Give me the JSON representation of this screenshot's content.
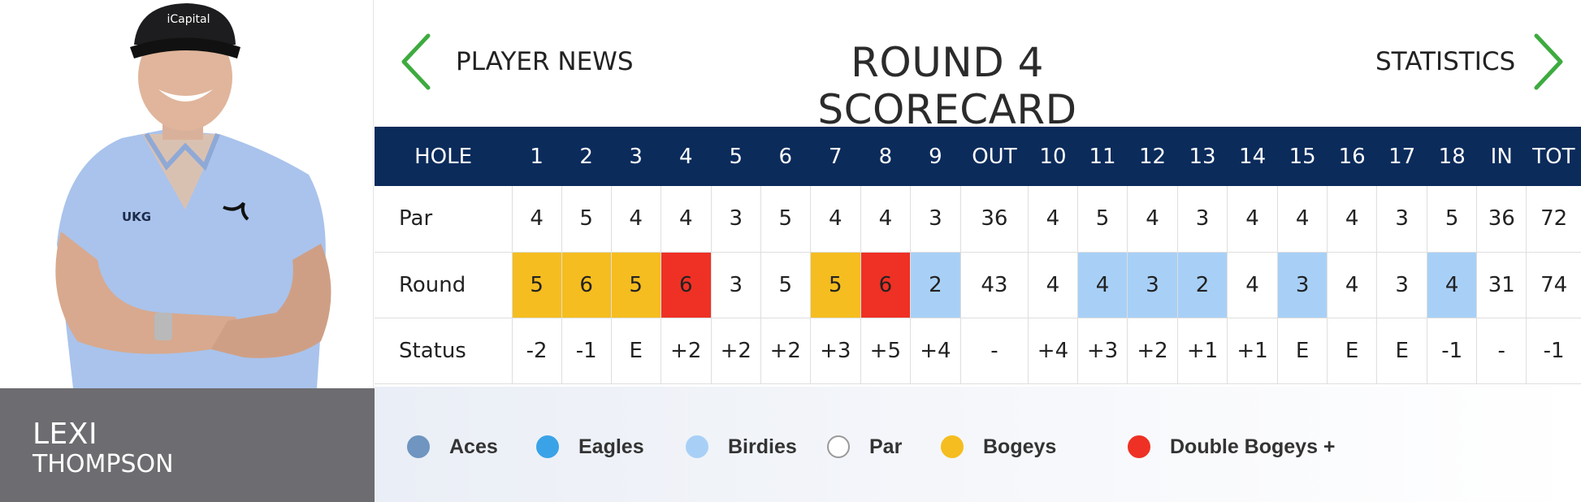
{
  "player": {
    "first_name": "LEXI",
    "last_name": "THOMPSON",
    "cap_text": "iCapital",
    "shirt_text": "UKG"
  },
  "header": {
    "title": "ROUND 4 SCORECARD",
    "prev_label": "PLAYER NEWS",
    "next_label": "STATISTICS"
  },
  "scorecard": {
    "columns": [
      "HOLE",
      "1",
      "2",
      "3",
      "4",
      "5",
      "6",
      "7",
      "8",
      "9",
      "OUT",
      "10",
      "11",
      "12",
      "13",
      "14",
      "15",
      "16",
      "17",
      "18",
      "IN",
      "TOT"
    ],
    "rows": [
      {
        "label": "Par",
        "cells": [
          "4",
          "5",
          "4",
          "4",
          "3",
          "5",
          "4",
          "4",
          "3",
          "36",
          "4",
          "5",
          "4",
          "3",
          "4",
          "4",
          "4",
          "3",
          "5",
          "36",
          "72"
        ],
        "types": [
          "",
          "",
          "",
          "",
          "",
          "",
          "",
          "",
          "",
          "",
          "",
          "",
          "",
          "",
          "",
          "",
          "",
          "",
          "",
          "",
          ""
        ]
      },
      {
        "label": "Round",
        "cells": [
          "5",
          "6",
          "5",
          "6",
          "3",
          "5",
          "5",
          "6",
          "2",
          "43",
          "4",
          "4",
          "3",
          "2",
          "4",
          "3",
          "4",
          "3",
          "4",
          "31",
          "74"
        ],
        "types": [
          "bogey",
          "bogey",
          "bogey",
          "double",
          "",
          "",
          "bogey",
          "double",
          "birdie",
          "",
          "",
          "birdie",
          "birdie",
          "birdie",
          "",
          "birdie",
          "",
          "",
          "birdie",
          "",
          ""
        ]
      },
      {
        "label": "Status",
        "cells": [
          "-2",
          "-1",
          "E",
          "+2",
          "+2",
          "+2",
          "+3",
          "+5",
          "+4",
          "-",
          "+4",
          "+3",
          "+2",
          "+1",
          "+1",
          "E",
          "E",
          "E",
          "-1",
          "-",
          "-1"
        ],
        "types": [
          "",
          "",
          "",
          "",
          "",
          "",
          "",
          "",
          "",
          "",
          "",
          "",
          "",
          "",
          "",
          "",
          "",
          "",
          "",
          "",
          ""
        ]
      }
    ]
  },
  "colors": {
    "bogey": "#f5bd1f",
    "double": "#ee3124",
    "birdie": "#a8d0f7",
    "header_bg": "#0b2b5b",
    "arrow": "#3dab3f"
  },
  "legend": [
    {
      "label": "Aces",
      "color": "#6f95c0",
      "border": "#6f95c0"
    },
    {
      "label": "Eagles",
      "color": "#3aa3e8",
      "border": "#3aa3e8"
    },
    {
      "label": "Birdies",
      "color": "#a8d0f7",
      "border": "#a8d0f7"
    },
    {
      "label": "Par",
      "color": "#ffffff",
      "border": "#9a9a9a"
    },
    {
      "label": "Bogeys",
      "color": "#f5bd1f",
      "border": "#f5bd1f"
    },
    {
      "label": "Double Bogeys +",
      "color": "#ee3124",
      "border": "#ee3124"
    }
  ]
}
